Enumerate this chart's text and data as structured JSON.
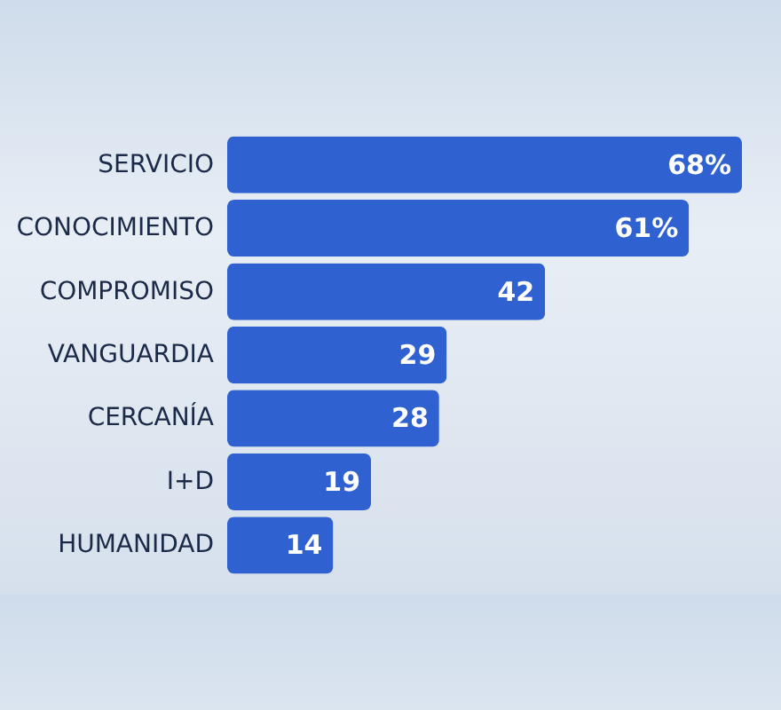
{
  "chart_data": {
    "type": "bar",
    "orientation": "horizontal",
    "categories": [
      "SERVICIO",
      "CONOCIMIENTO",
      "COMPROMISO",
      "VANGUARDIA",
      "CERCANÍA",
      "I+D",
      "HUMANIDAD"
    ],
    "values": [
      68,
      61,
      42,
      29,
      28,
      19,
      14
    ],
    "value_labels": [
      "68%",
      "61%",
      "42",
      "29",
      "28",
      "19",
      "14"
    ],
    "color": "#2f62d0"
  }
}
